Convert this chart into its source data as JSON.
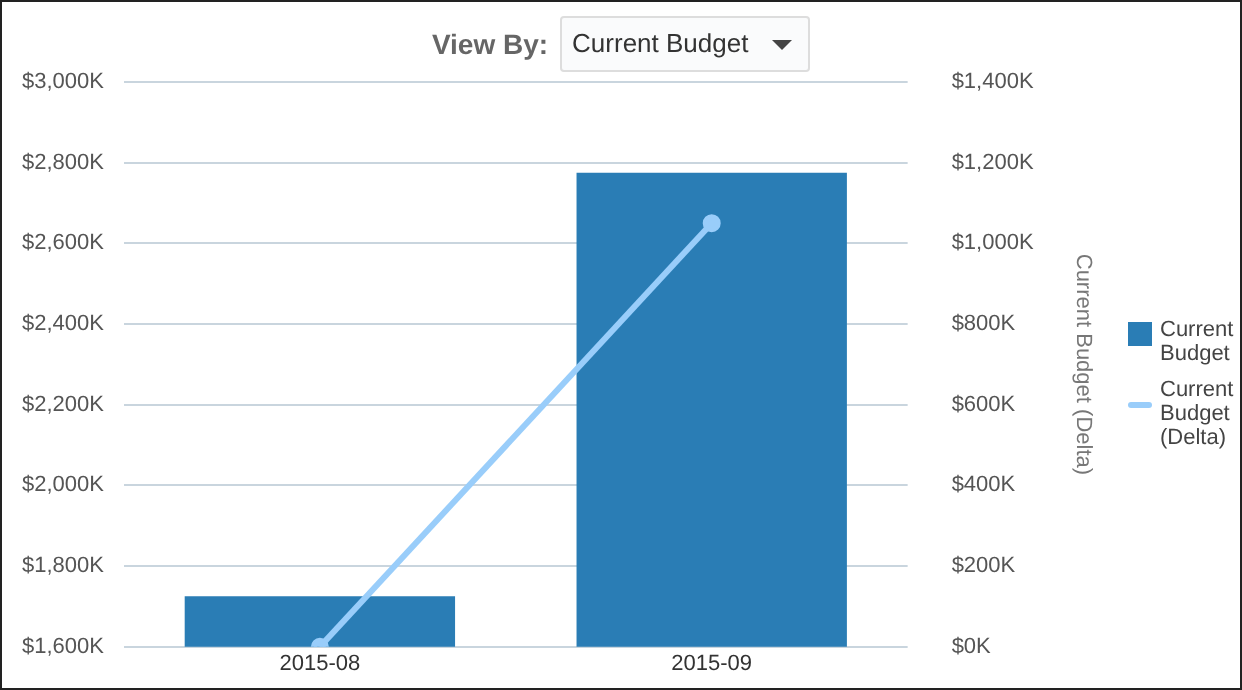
{
  "chart_data": {
    "type": "bar",
    "categories": [
      "2015-08",
      "2015-09"
    ],
    "series": [
      {
        "name": "Current Budget",
        "color": "#2a7db5",
        "values": [
          1725,
          2775
        ]
      },
      {
        "name": "Current Budget (Delta)",
        "type": "line",
        "axis": "y2",
        "color": "#99cdfa",
        "values": [
          0,
          1050
        ]
      }
    ],
    "ylim": [
      1600,
      3000
    ],
    "yticks": [
      {
        "value": 1600,
        "label": "$1,600K"
      },
      {
        "value": 1800,
        "label": "$1,800K"
      },
      {
        "value": 2000,
        "label": "$2,000K"
      },
      {
        "value": 2200,
        "label": "$2,200K"
      },
      {
        "value": 2400,
        "label": "$2,400K"
      },
      {
        "value": 2600,
        "label": "$2,600K"
      },
      {
        "value": 2800,
        "label": "$2,800K"
      },
      {
        "value": 3000,
        "label": "$3,000K"
      }
    ],
    "y2lim": [
      0,
      1400
    ],
    "y2ticks": [
      {
        "value": 0,
        "label": "$0K"
      },
      {
        "value": 200,
        "label": "$200K"
      },
      {
        "value": 400,
        "label": "$400K"
      },
      {
        "value": 600,
        "label": "$600K"
      },
      {
        "value": 800,
        "label": "$800K"
      },
      {
        "value": 1000,
        "label": "$1,000K"
      },
      {
        "value": 1200,
        "label": "$1,200K"
      },
      {
        "value": 1400,
        "label": "$1,400K"
      }
    ],
    "y2label": "Current Budget (Delta)",
    "grid": "y",
    "legend": "right",
    "marker": "circle",
    "annotations": [
      "View By:",
      "Current Budget"
    ]
  }
}
